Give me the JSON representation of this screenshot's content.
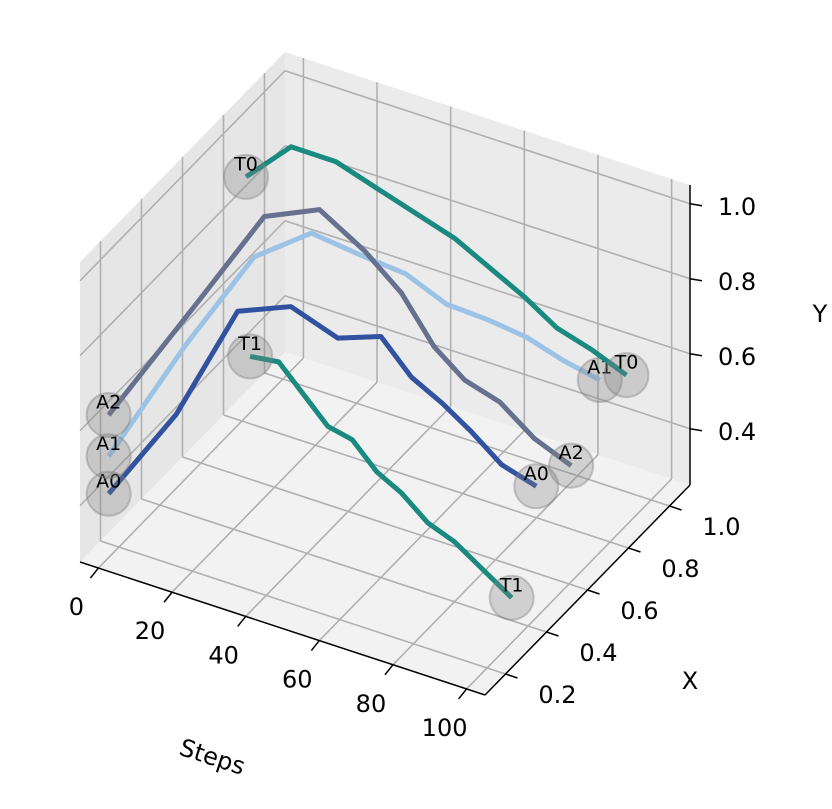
{
  "chart_data": {
    "type": "line3d",
    "x_label": "Steps",
    "y_label": "X",
    "z_label": "Y",
    "xlim": [
      -5,
      105
    ],
    "xticks": [
      0,
      20,
      40,
      60,
      80,
      100
    ],
    "ylim": [
      0.1,
      1.1
    ],
    "yticks": [
      0.2,
      0.4,
      0.6,
      0.8,
      {
        "value": 1,
        "label": "1.0"
      }
    ],
    "zlim": [
      0.25,
      1.05
    ],
    "zticks": [
      0.4,
      0.6,
      0.8,
      {
        "value": 1,
        "label": "1.0"
      }
    ],
    "grid": true,
    "x": [
      0,
      10,
      20,
      30,
      40,
      50,
      60,
      70,
      80,
      90,
      100
    ],
    "series": [
      {
        "name": "A0",
        "color": "#3152a0",
        "y": [
          0.15,
          0.3,
          0.42,
          0.5,
          0.55,
          0.58,
          0.55,
          0.52,
          0.48,
          0.45,
          0.44
        ],
        "z": [
          0.42,
          0.58,
          0.82,
          0.82,
          0.74,
          0.76,
          0.7,
          0.68,
          0.66,
          0.62,
          0.6
        ]
      },
      {
        "name": "A1",
        "color": "#9cc3e6",
        "y": [
          0.15,
          0.35,
          0.5,
          0.6,
          0.66,
          0.7,
          0.72,
          0.74,
          0.75,
          0.75,
          0.75
        ],
        "z": [
          0.52,
          0.74,
          0.92,
          0.96,
          0.9,
          0.86,
          0.8,
          0.78,
          0.76,
          0.73,
          0.71
        ]
      },
      {
        "name": "A2",
        "color": "#67718f",
        "y": [
          0.15,
          0.4,
          0.55,
          0.64,
          0.68,
          0.68,
          0.66,
          0.63,
          0.62,
          0.61,
          0.61
        ],
        "z": [
          0.63,
          0.82,
          1.0,
          1.0,
          0.9,
          0.82,
          0.72,
          0.68,
          0.66,
          0.6,
          0.56
        ]
      },
      {
        "name": "T0",
        "color": "#1a8a80",
        "y": [
          0.82,
          0.86,
          0.9,
          0.92,
          0.93,
          0.94,
          0.93,
          0.92,
          0.9,
          0.89,
          0.88
        ],
        "z": [
          0.89,
          0.98,
          0.95,
          0.9,
          0.86,
          0.82,
          0.78,
          0.74,
          0.7,
          0.68,
          0.65
        ]
      },
      {
        "name": "T1",
        "color": "#1a8a80",
        "y": [
          0.84,
          0.8,
          0.74,
          0.68,
          0.62,
          0.56,
          0.5,
          0.45,
          0.4,
          0.36,
          0.32
        ],
        "z": [
          0.4,
          0.44,
          0.42,
          0.4,
          0.43,
          0.41,
          0.42,
          0.4,
          0.41,
          0.39,
          0.37
        ]
      }
    ]
  }
}
